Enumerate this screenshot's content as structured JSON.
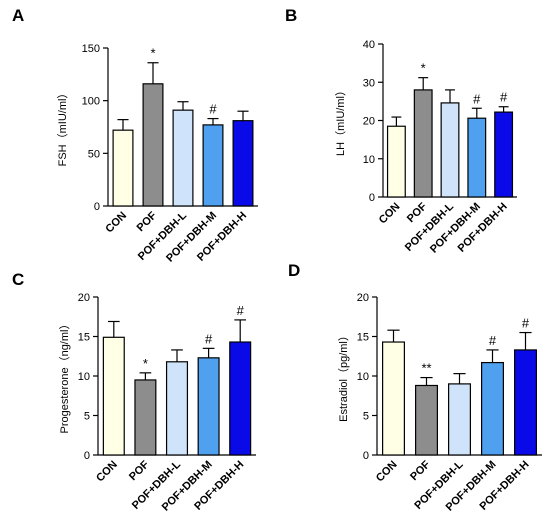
{
  "figure": {
    "colors": {
      "CON": "#ffffe6",
      "POF": "#8d8d8d",
      "POF+DBH-L": "#cfe4fb",
      "POF+DBH-M": "#4fa0ee",
      "POF+DBH-H": "#0a0ae8"
    }
  },
  "chart_data": [
    {
      "panel": "A",
      "type": "bar",
      "categories": [
        "CON",
        "POF",
        "POF+DBH-L",
        "POF+DBH-M",
        "POF+DBH-H"
      ],
      "values": [
        72,
        116,
        91,
        77,
        81
      ],
      "errors": [
        10,
        20,
        8,
        6,
        9
      ],
      "significance": [
        "",
        "*",
        "",
        "#",
        ""
      ],
      "ylabel": "FSH（mIU/ml）",
      "ylim": [
        0,
        150
      ],
      "yticks": [
        "0",
        "50",
        "100",
        "150"
      ]
    },
    {
      "panel": "B",
      "type": "bar",
      "categories": [
        "CON",
        "POF",
        "POF+DBH-L",
        "POF+DBH-M",
        "POF+DBH-H"
      ],
      "values": [
        18.5,
        28,
        24.6,
        20.6,
        22.2
      ],
      "errors": [
        2.4,
        3.2,
        3.4,
        2.6,
        1.4
      ],
      "significance": [
        "",
        "*",
        "",
        "#",
        "#"
      ],
      "ylabel": "LH（mIU/ml）",
      "ylim": [
        0,
        40
      ],
      "yticks": [
        "0",
        "10",
        "20",
        "30",
        "40"
      ]
    },
    {
      "panel": "C",
      "type": "bar",
      "categories": [
        "CON",
        "POF",
        "POF+DBH-L",
        "POF+DBH-M",
        "POF+DBH-H"
      ],
      "values": [
        14.9,
        9.5,
        11.8,
        12.3,
        14.3
      ],
      "errors": [
        2.0,
        0.9,
        1.5,
        1.2,
        2.8
      ],
      "significance": [
        "",
        "*",
        "",
        "#",
        "#"
      ],
      "ylabel": "Progesterone（ng/ml）",
      "ylim": [
        0,
        20
      ],
      "yticks": [
        "0",
        "5",
        "10",
        "15",
        "20"
      ]
    },
    {
      "panel": "D",
      "type": "bar",
      "categories": [
        "CON",
        "POF",
        "POF+DBH-L",
        "POF+DBH-M",
        "POF+DBH-H"
      ],
      "values": [
        14.3,
        8.8,
        9.0,
        11.7,
        13.3
      ],
      "errors": [
        1.5,
        1.0,
        1.3,
        1.6,
        2.2
      ],
      "significance": [
        "",
        "**",
        "",
        "#",
        "#"
      ],
      "ylabel": "Estradiol（pg/ml）",
      "ylim": [
        0,
        20
      ],
      "yticks": [
        "0",
        "5",
        "10",
        "15",
        "20"
      ]
    }
  ]
}
